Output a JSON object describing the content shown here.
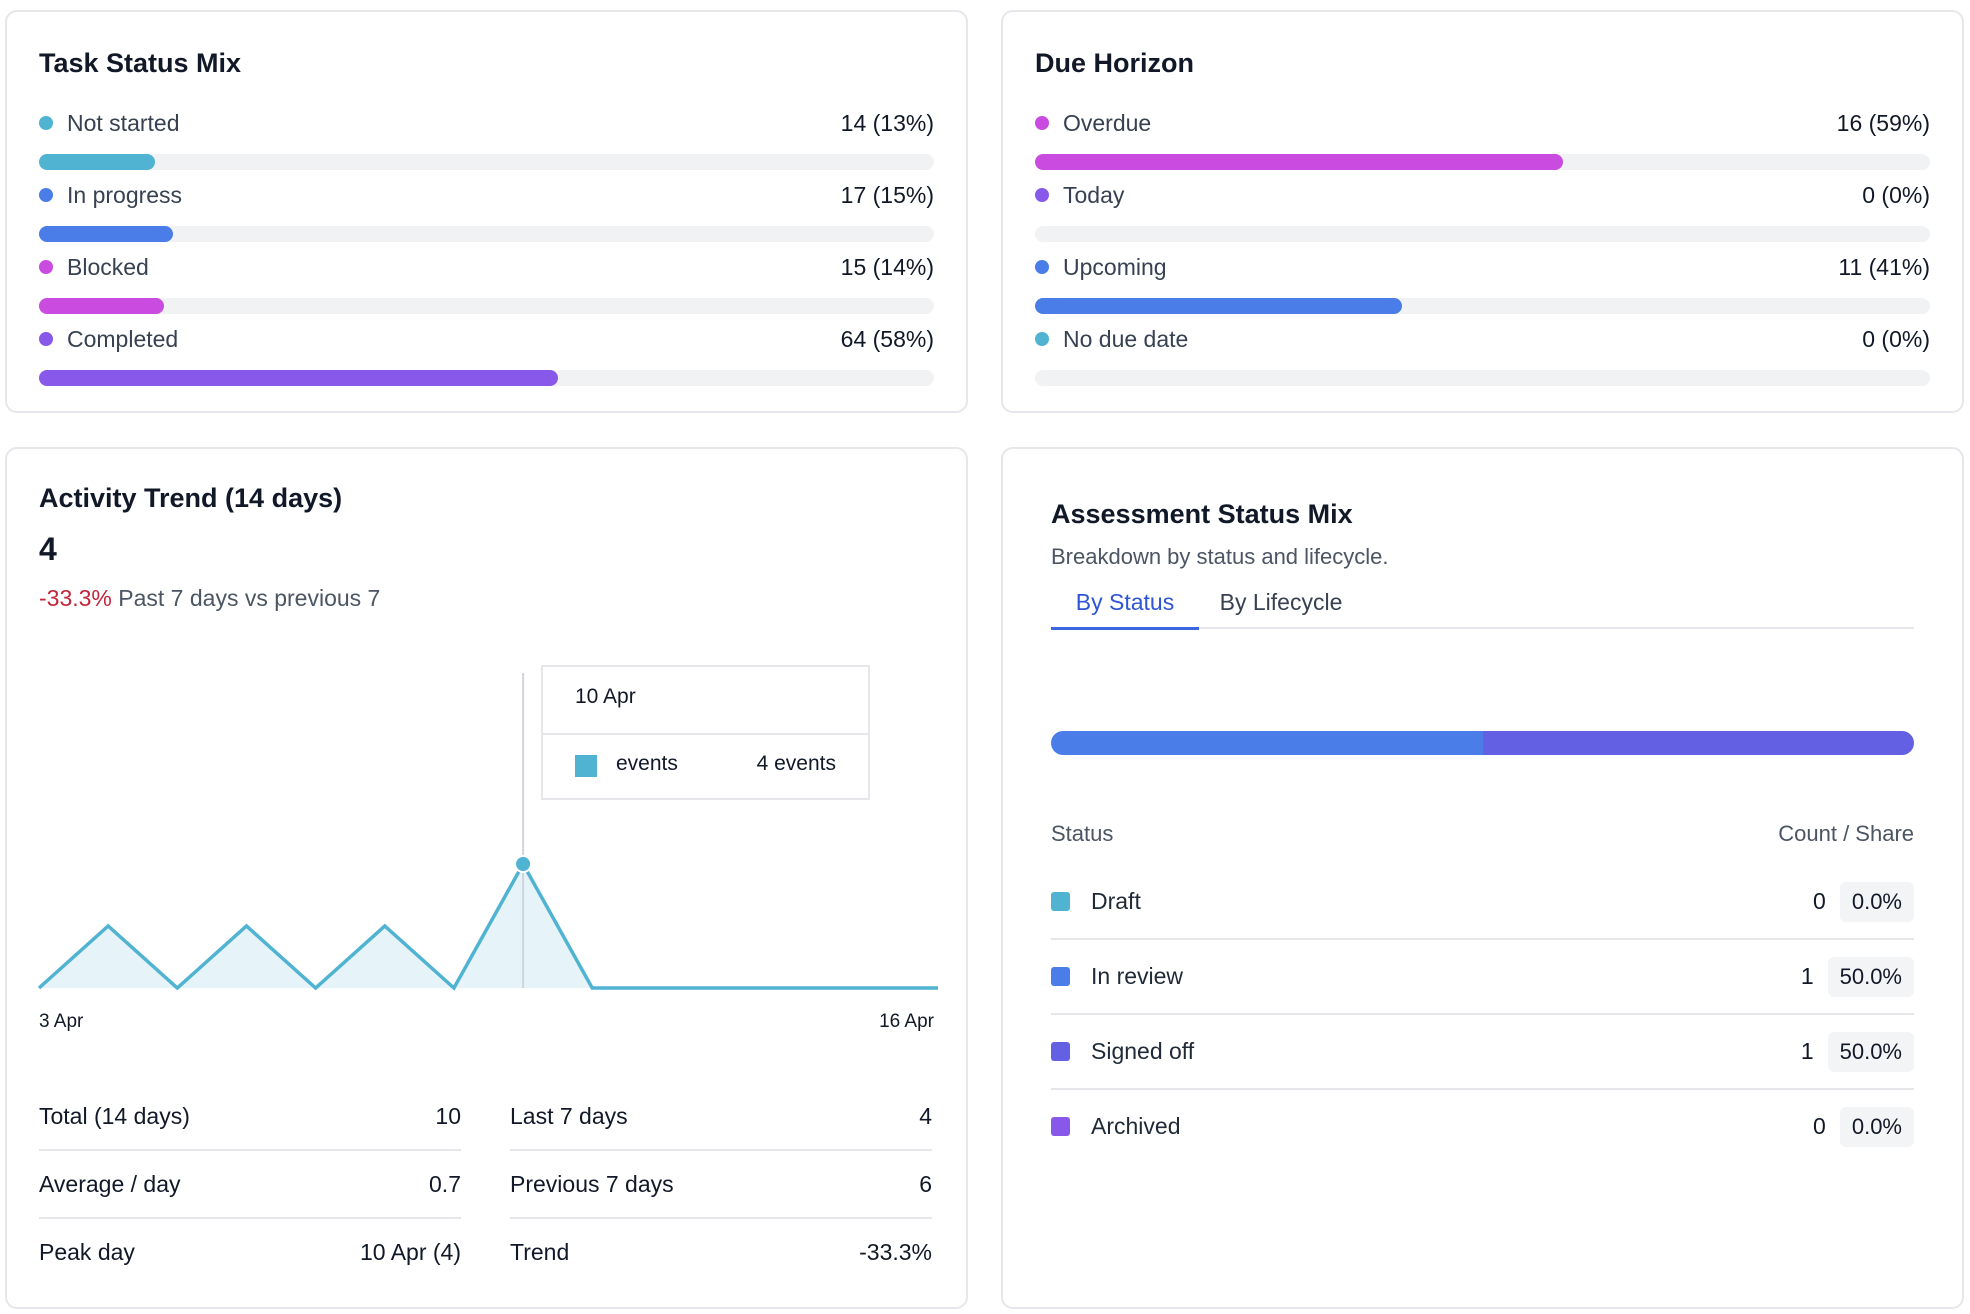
{
  "task_status": {
    "title": "Task Status Mix",
    "items": [
      {
        "label": "Not started",
        "value": "14 (13%)",
        "fraction": 0.13,
        "color": "#4fb3d1"
      },
      {
        "label": "In progress",
        "value": "17 (15%)",
        "fraction": 0.15,
        "color": "#4a7de8"
      },
      {
        "label": "Blocked",
        "value": "15 (14%)",
        "fraction": 0.14,
        "color": "#c94be0"
      },
      {
        "label": "Completed",
        "value": "64 (58%)",
        "fraction": 0.58,
        "color": "#8758ea"
      }
    ]
  },
  "due_horizon": {
    "title": "Due Horizon",
    "items": [
      {
        "label": "Overdue",
        "value": "16 (59%)",
        "fraction": 0.59,
        "color": "#c94be0"
      },
      {
        "label": "Today",
        "value": "0 (0%)",
        "fraction": 0,
        "color": "#8758ea"
      },
      {
        "label": "Upcoming",
        "value": "11 (41%)",
        "fraction": 0.41,
        "color": "#4a7de8"
      },
      {
        "label": "No due date",
        "value": "0 (0%)",
        "fraction": 0,
        "color": "#4fb3d1"
      }
    ]
  },
  "activity": {
    "title": "Activity Trend (14 days)",
    "total_display": "4",
    "delta": "-33.3%",
    "delta_caption": "Past 7 days vs previous 7",
    "axis_start": "3 Apr",
    "axis_end": "16 Apr",
    "tooltip": {
      "date": "10 Apr",
      "series": "events",
      "value": "4 events"
    },
    "stats_left": [
      {
        "label": "Total (14 days)",
        "value": "10"
      },
      {
        "label": "Average / day",
        "value": "0.7"
      },
      {
        "label": "Peak day",
        "value": "10 Apr (4)"
      }
    ],
    "stats_right": [
      {
        "label": "Last 7 days",
        "value": "4"
      },
      {
        "label": "Previous 7 days",
        "value": "6"
      },
      {
        "label": "Trend",
        "value": "-33.3%"
      }
    ]
  },
  "chart_data": {
    "type": "area",
    "x": [
      "3 Apr",
      "4 Apr",
      "5 Apr",
      "6 Apr",
      "7 Apr",
      "8 Apr",
      "9 Apr",
      "10 Apr",
      "11 Apr",
      "12 Apr",
      "13 Apr",
      "14 Apr",
      "15 Apr",
      "16 Apr"
    ],
    "series": [
      {
        "name": "events",
        "values": [
          0,
          2,
          0,
          2,
          0,
          2,
          0,
          4,
          0,
          0,
          0,
          0,
          0,
          0
        ]
      }
    ],
    "title": "Activity Trend (14 days)",
    "highlighted_point": "10 Apr",
    "color": "#4fb3d1",
    "ylim": [
      0,
      4
    ],
    "grid": false
  },
  "assessment": {
    "title": "Assessment Status Mix",
    "subtitle": "Breakdown by status and lifecycle.",
    "tabs": [
      "By Status",
      "By Lifecycle"
    ],
    "active_tab": "By Status",
    "col_status": "Status",
    "col_count": "Count / Share",
    "rows": [
      {
        "label": "Draft",
        "count": "0",
        "share": "0.0%",
        "fraction": 0,
        "color": "#4fb3d1"
      },
      {
        "label": "In review",
        "count": "1",
        "share": "50.0%",
        "fraction": 0.5,
        "color": "#4a7de8"
      },
      {
        "label": "Signed off",
        "count": "1",
        "share": "50.0%",
        "fraction": 0.5,
        "color": "#6460e3"
      },
      {
        "label": "Archived",
        "count": "0",
        "share": "0.0%",
        "fraction": 0,
        "color": "#8758ea"
      }
    ]
  }
}
